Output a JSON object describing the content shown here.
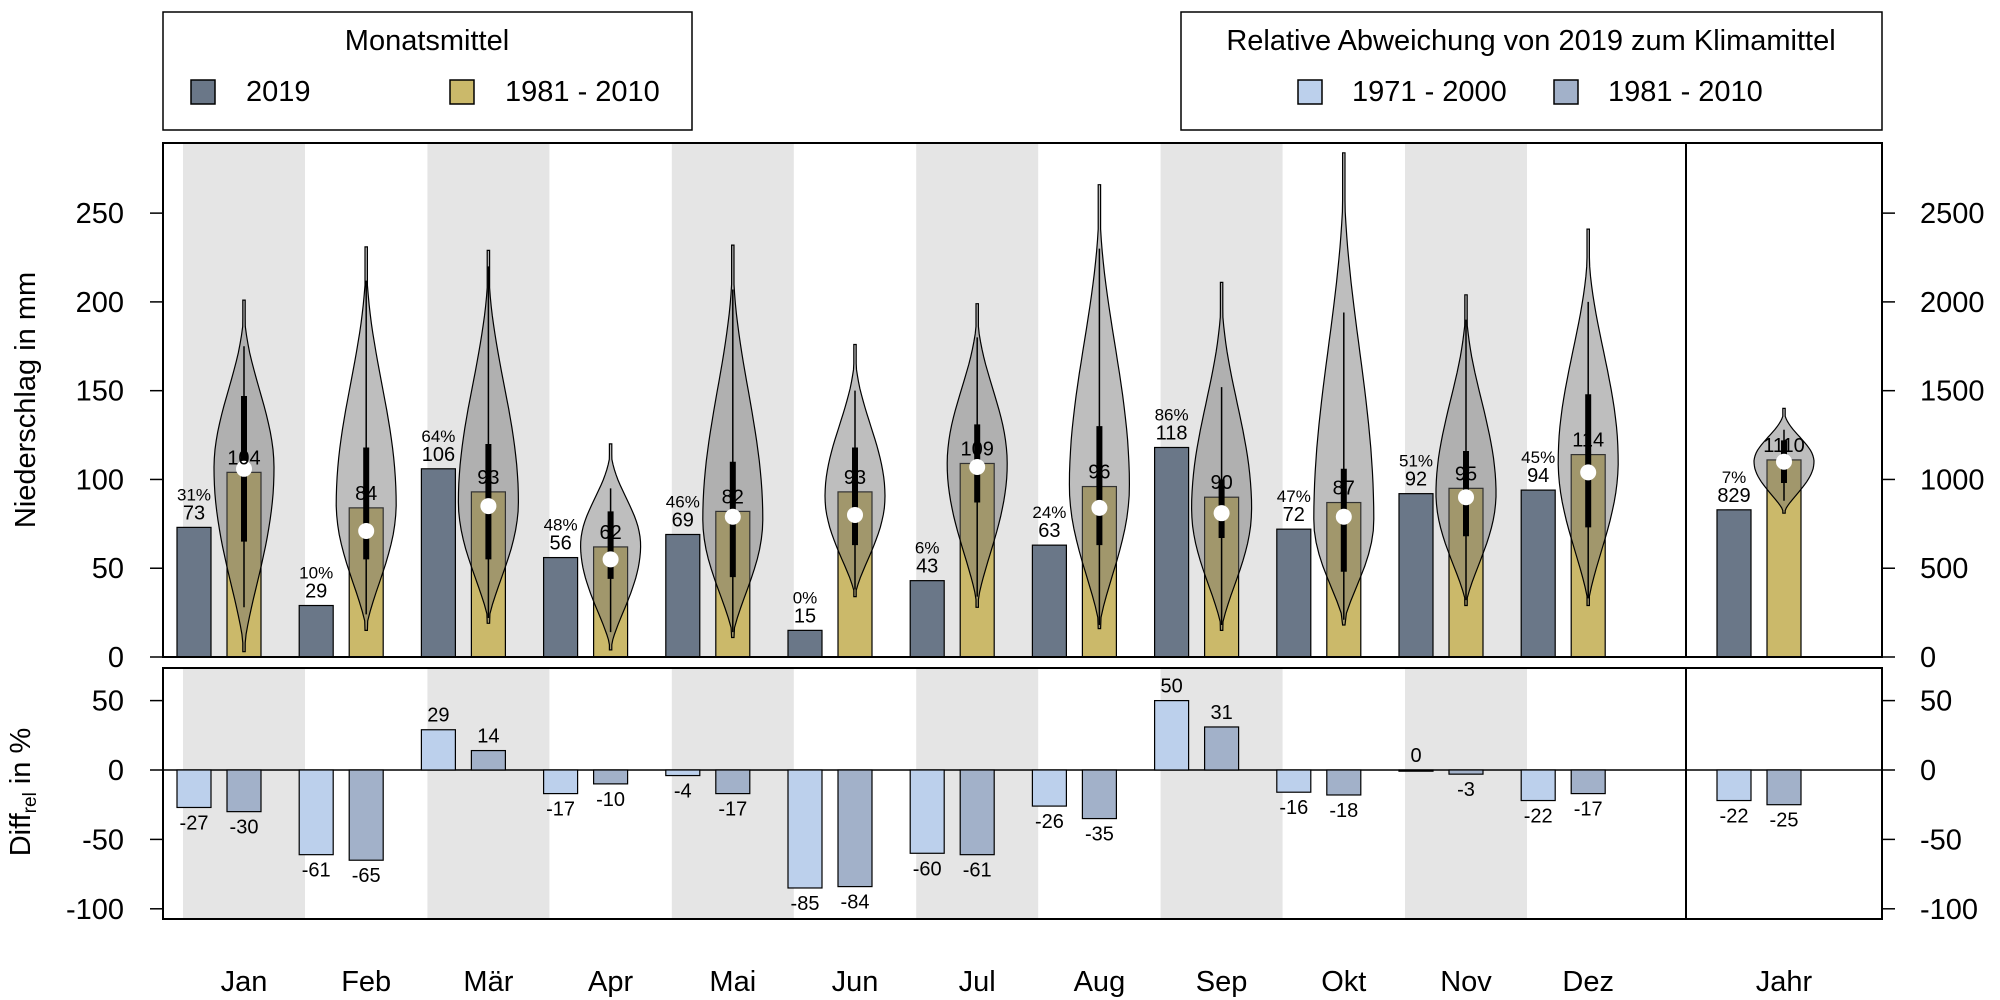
{
  "chart_data": {
    "type": "bar",
    "categories": [
      "Jan",
      "Feb",
      "Mär",
      "Apr",
      "Mai",
      "Jun",
      "Jul",
      "Aug",
      "Sep",
      "Okt",
      "Nov",
      "Dez"
    ],
    "annual_category": "Jahr",
    "top_panel": {
      "ylabel": "Niederschlag in mm",
      "ylim": [
        0,
        290
      ],
      "left_ticks": [
        0,
        50,
        100,
        150,
        200,
        250
      ],
      "right_ticks": [
        0,
        500,
        1000,
        1500,
        2000,
        2500
      ],
      "legend_title": "Monatsmittel",
      "series": [
        {
          "name": "2019",
          "values": [
            73,
            29,
            106,
            56,
            69,
            15,
            43,
            63,
            118,
            72,
            92,
            94
          ],
          "annual": 829,
          "color": "#6a7788"
        },
        {
          "name": "1981 - 2010",
          "values": [
            104,
            84,
            93,
            62,
            82,
            93,
            109,
            96,
            90,
            87,
            95,
            114
          ],
          "annual": 1110,
          "color": "#cbb96a"
        }
      ],
      "percent_labels": [
        "31%",
        "10%",
        "64%",
        "48%",
        "46%",
        "0%",
        "6%",
        "24%",
        "86%",
        "47%",
        "51%",
        "45%"
      ],
      "annual_percent_label": "7%",
      "violins": [
        {
          "min": 3,
          "max": 201,
          "q1": 65,
          "q3": 147,
          "w_lo": 28,
          "w_hi": 175,
          "median": 106
        },
        {
          "min": 15,
          "max": 231,
          "q1": 55,
          "q3": 118,
          "w_lo": 24,
          "w_hi": 212,
          "median": 71
        },
        {
          "min": 19,
          "max": 229,
          "q1": 55,
          "q3": 120,
          "w_lo": 22,
          "w_hi": 220,
          "median": 85
        },
        {
          "min": 4,
          "max": 120,
          "q1": 44,
          "q3": 82,
          "w_lo": 14,
          "w_hi": 95,
          "median": 55
        },
        {
          "min": 11,
          "max": 232,
          "q1": 45,
          "q3": 110,
          "w_lo": 14,
          "w_hi": 207,
          "median": 79
        },
        {
          "min": 34,
          "max": 176,
          "q1": 63,
          "q3": 118,
          "w_lo": 38,
          "w_hi": 150,
          "median": 80
        },
        {
          "min": 28,
          "max": 199,
          "q1": 87,
          "q3": 131,
          "w_lo": 34,
          "w_hi": 180,
          "median": 107
        },
        {
          "min": 16,
          "max": 266,
          "q1": 63,
          "q3": 130,
          "w_lo": 18,
          "w_hi": 230,
          "median": 84
        },
        {
          "min": 15,
          "max": 211,
          "q1": 67,
          "q3": 100,
          "w_lo": 18,
          "w_hi": 152,
          "median": 81
        },
        {
          "min": 18,
          "max": 284,
          "q1": 48,
          "q3": 106,
          "w_lo": 21,
          "w_hi": 194,
          "median": 79
        },
        {
          "min": 29,
          "max": 204,
          "q1": 68,
          "q3": 116,
          "w_lo": 32,
          "w_hi": 190,
          "median": 90
        },
        {
          "min": 29,
          "max": 241,
          "q1": 73,
          "q3": 148,
          "w_lo": 33,
          "w_hi": 200,
          "median": 104
        }
      ],
      "annual_violin": {
        "min": 81,
        "max": 140,
        "q1": 98,
        "q3": 122,
        "w_lo": 88,
        "w_hi": 128,
        "median": 110
      }
    },
    "bottom_panel": {
      "ylabel": "Diff",
      "ylabel_sub": "rel",
      "ylabel_suffix": " in %",
      "ylim": [
        -108,
        70
      ],
      "ticks": [
        -100,
        -50,
        0,
        50
      ],
      "legend_title": "Relative Abweichung von 2019 zum Klimamittel",
      "series": [
        {
          "name": "1971 - 2000",
          "values": [
            -27,
            -61,
            29,
            -17,
            -4,
            -85,
            -60,
            -26,
            50,
            -16,
            0,
            -22
          ],
          "annual": -22,
          "color": "#bcd0ec"
        },
        {
          "name": "1981 - 2010",
          "values": [
            -30,
            -65,
            14,
            -10,
            -17,
            -84,
            -61,
            -35,
            31,
            -18,
            -3,
            -17
          ],
          "annual": -25,
          "color": "#a2b1c9"
        }
      ]
    },
    "shading_color": "#e5e5e5"
  }
}
